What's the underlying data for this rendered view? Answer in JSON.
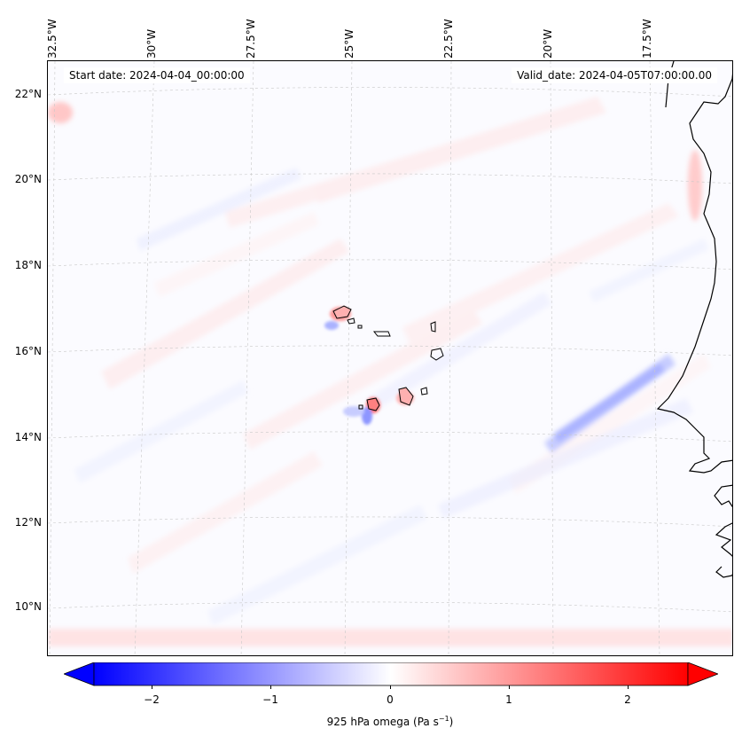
{
  "map": {
    "start_date": "Start date: 2024-04-04_00:00:00",
    "valid_date": "Valid_date: 2024-04-05T07:00:00.00",
    "lon_labels": [
      "32.5°W",
      "30°W",
      "27.5°W",
      "25°W",
      "22.5°W",
      "20°W",
      "17.5°W"
    ],
    "lat_labels": [
      "22°N",
      "20°N",
      "18°N",
      "16°N",
      "14°N",
      "12°N",
      "10°N"
    ],
    "variable": "925 hPa omega",
    "units": "Pa s",
    "units_exponent": "−1"
  },
  "colorbar": {
    "ticks": [
      "−2",
      "−1",
      "0",
      "1",
      "2"
    ],
    "min": -2.6,
    "max": 2.6,
    "negative_color": "#0000ff",
    "positive_color": "#ff0000"
  }
}
